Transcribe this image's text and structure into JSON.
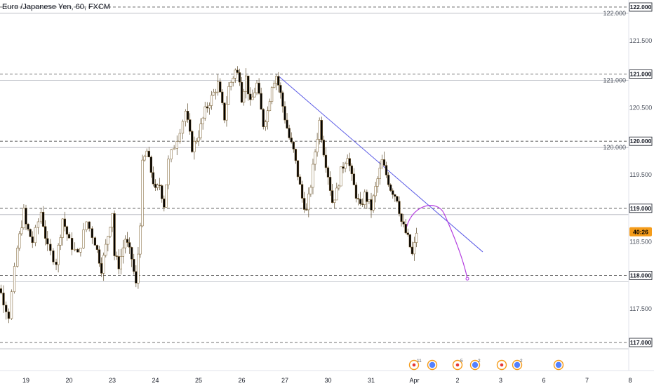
{
  "chart": {
    "title": "Euro /Japanese Yen, 60, FXCM",
    "countdown": "40:26"
  },
  "colors": {
    "candle_up": "#ffffff",
    "candle_down": "#000000",
    "candle_border": "#7a5d2c",
    "wick": "#5c4a2a",
    "trendline": "#5b5be6",
    "projection": "#b43fe0",
    "level_line": "#444444",
    "level_band": "#b2b5be",
    "price_badge_bg": "#ffffff",
    "price_badge_border": "#131722",
    "countdown_bg": "#f59c1a",
    "axis_border": "#e0e3eb",
    "event_orange": "#f59c1a",
    "event_red": "#e53935",
    "event_blue": "#2962ff"
  },
  "chart_data": {
    "type": "candlestick",
    "symbol": "Euro /Japanese Yen",
    "interval": "60",
    "source": "FXCM",
    "x_ticks": [
      "19",
      "20",
      "23",
      "24",
      "25",
      "26",
      "27",
      "30",
      "31",
      "Apr",
      "2",
      "3",
      "6",
      "7",
      "8"
    ],
    "y_ticks": [
      "122.000",
      "121.500",
      "121.000",
      "120.500",
      "120.000",
      "119.500",
      "119.000",
      "118.500",
      "118.000",
      "117.500",
      "117.000"
    ],
    "ylim": [
      116.8,
      122.05
    ],
    "horizontal_levels": [
      {
        "price": 122.0,
        "label": "122.000"
      },
      {
        "price": 121.0,
        "label": "121.000"
      },
      {
        "price": 120.0,
        "label": "120.000"
      },
      {
        "price": 119.0,
        "label": "119.000"
      },
      {
        "price": 118.0,
        "label": "118.000"
      },
      {
        "price": 117.0,
        "label": "117.000"
      }
    ],
    "last_price": 118.65,
    "trendline": {
      "start": [
        "26",
        120.97
      ],
      "end": [
        "2-3",
        118.35
      ]
    },
    "projection_curve": {
      "from": 118.65,
      "peak": 118.98,
      "to": 117.95
    },
    "event_counts": [
      "11",
      "5",
      "2",
      "2"
    ],
    "candle_anchors": [
      [
        "18",
        118.6
      ],
      [
        "18.3",
        117.95
      ],
      [
        "18.6",
        117.4
      ],
      [
        "18.8",
        118.4
      ],
      [
        "18.95",
        118.95
      ],
      [
        "19",
        118.75
      ],
      [
        "19.15",
        118.5
      ],
      [
        "19.35",
        118.95
      ],
      [
        "19.5",
        118.4
      ],
      [
        "19.7",
        118.2
      ],
      [
        "19.85",
        118.85
      ],
      [
        "20",
        118.5
      ],
      [
        "20.2",
        118.3
      ],
      [
        "20.4",
        118.8
      ],
      [
        "20.6",
        118.5
      ],
      [
        "20.75",
        118.1
      ],
      [
        "20.9",
        118.6
      ],
      [
        "21",
        118.95
      ],
      [
        "21.05",
        118.3
      ],
      [
        "21.15",
        118.15
      ],
      [
        "21.3",
        118.55
      ],
      [
        "21.45",
        118.25
      ],
      [
        "21.55",
        117.85
      ],
      [
        "21.65",
        118.8
      ],
      [
        "21.7",
        119.65
      ],
      [
        "21.8",
        119.85
      ],
      [
        "21.9",
        119.55
      ],
      [
        "22",
        119.25
      ],
      [
        "22.1",
        119.35
      ],
      [
        "22.2",
        119.05
      ],
      [
        "22.3",
        119.7
      ],
      [
        "22.5",
        120.05
      ],
      [
        "22.7",
        120.45
      ],
      [
        "22.85",
        119.9
      ],
      [
        "23",
        120.1
      ],
      [
        "23.15",
        120.45
      ],
      [
        "23.3",
        120.65
      ],
      [
        "23.45",
        120.85
      ],
      [
        "23.6",
        120.35
      ],
      [
        "23.7",
        120.8
      ],
      [
        "23.85",
        121.05
      ],
      [
        "23.95",
        120.95
      ],
      [
        "24",
        120.65
      ],
      [
        "24.1",
        120.95
      ],
      [
        "24.2",
        120.55
      ],
      [
        "24.35",
        120.85
      ],
      [
        "24.5",
        120.25
      ],
      [
        "24.6",
        120.45
      ],
      [
        "24.7",
        120.85
      ],
      [
        "24.8",
        120.98
      ],
      [
        "24.9",
        120.7
      ],
      [
        "25",
        120.35
      ],
      [
        "25.1",
        120.05
      ],
      [
        "25.2",
        119.85
      ],
      [
        "25.3",
        119.5
      ],
      [
        "25.4",
        119.15
      ],
      [
        "25.5",
        118.95
      ],
      [
        "25.6",
        119.35
      ],
      [
        "25.7",
        119.85
      ],
      [
        "25.8",
        120.3
      ],
      [
        "25.9",
        119.85
      ],
      [
        "26",
        119.5
      ],
      [
        "26.1",
        119.1
      ],
      [
        "26.2",
        119.25
      ],
      [
        "26.3",
        119.55
      ],
      [
        "26.45",
        119.8
      ],
      [
        "26.55",
        119.45
      ],
      [
        "26.65",
        119.2
      ],
      [
        "26.75",
        119.0
      ],
      [
        "26.85",
        119.2
      ],
      [
        "27",
        119.0
      ],
      [
        "27.1",
        119.3
      ],
      [
        "27.25",
        119.7
      ],
      [
        "27.35",
        119.5
      ],
      [
        "27.45",
        119.3
      ],
      [
        "27.6",
        119.15
      ],
      [
        "27.7",
        118.8
      ],
      [
        "27.85",
        118.55
      ],
      [
        "27.95",
        118.3
      ],
      [
        "28",
        118.45
      ],
      [
        "28.05",
        118.65
      ]
    ]
  }
}
